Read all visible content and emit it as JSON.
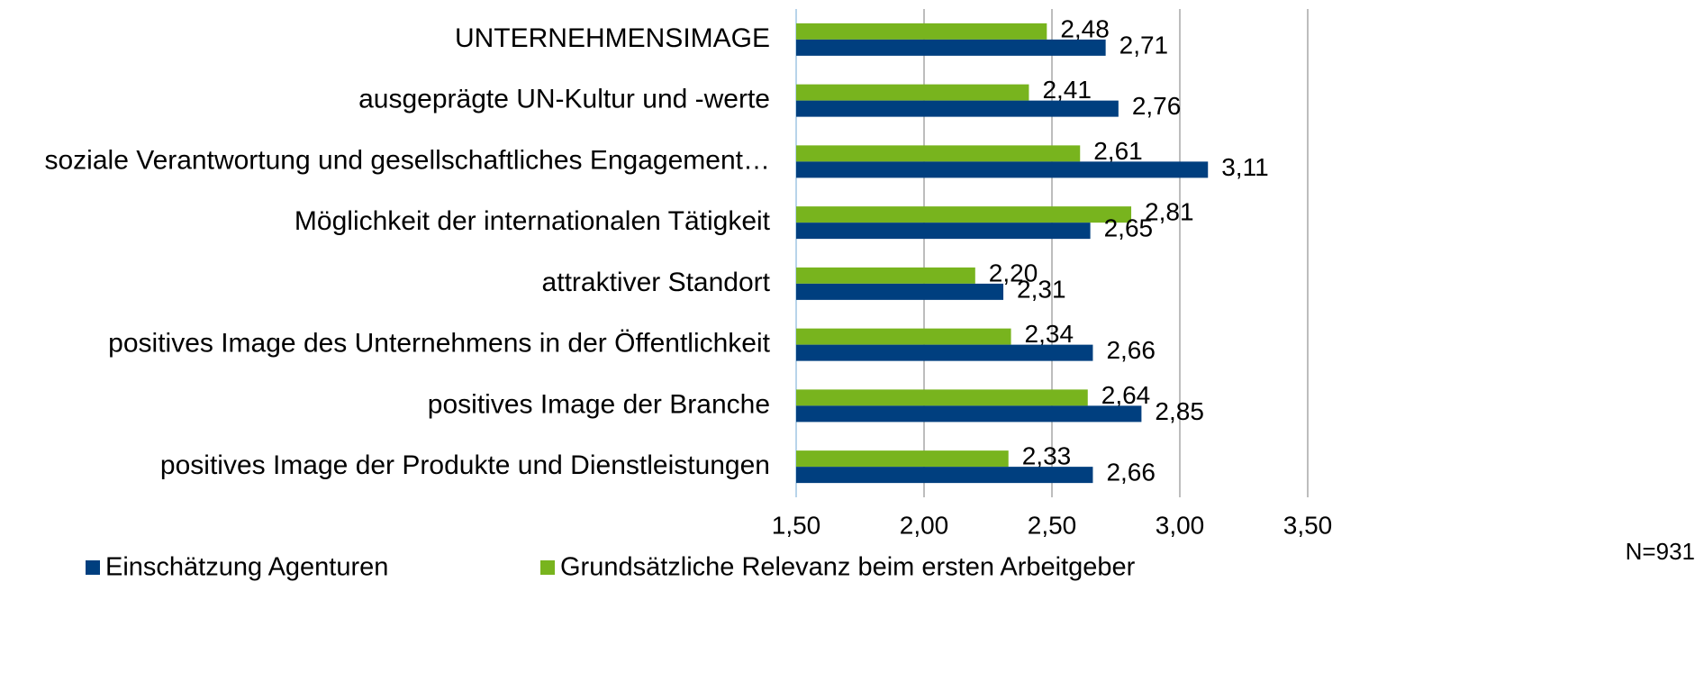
{
  "chart_data": {
    "type": "barh",
    "categories": [
      "UNTERNEHMENSIMAGE",
      "ausgeprägte UN-Kultur und -werte",
      "soziale Verantwortung und gesellschaftliches Engagement…",
      "Möglichkeit der internationalen  Tätigkeit",
      "attraktiver Standort",
      "positives Image des Unternehmens in der Öffentlichkeit",
      "positives Image der Branche",
      "positives Image der Produkte und Dienstleistungen"
    ],
    "series": [
      {
        "name": "Einschätzung Agenturen",
        "color": "#003f7f",
        "values": [
          2.71,
          2.76,
          3.11,
          2.65,
          2.31,
          2.66,
          2.85,
          2.66
        ],
        "value_labels": [
          "2,71",
          "2,76",
          "3,11",
          "2,65",
          "2,31",
          "2,66",
          "2,85",
          "2,66"
        ]
      },
      {
        "name": "Grundsätzliche Relevanz beim ersten Arbeitgeber",
        "color": "#78b41e",
        "values": [
          2.48,
          2.41,
          2.61,
          2.81,
          2.2,
          2.34,
          2.64,
          2.33
        ],
        "value_labels": [
          "2,48",
          "2,41",
          "2,61",
          "2,81",
          "2,20",
          "2,34",
          "2,64",
          "2,33"
        ]
      }
    ],
    "xlim": [
      1.5,
      3.5
    ],
    "xticks": [
      {
        "value": 1.5,
        "label": "1,50"
      },
      {
        "value": 2.0,
        "label": "2,00"
      },
      {
        "value": 2.5,
        "label": "2,50"
      },
      {
        "value": 3.0,
        "label": "3,00"
      },
      {
        "value": 3.5,
        "label": "3,50"
      }
    ],
    "grid": true,
    "legend": "bottom",
    "annotations": [
      "N=931"
    ]
  }
}
